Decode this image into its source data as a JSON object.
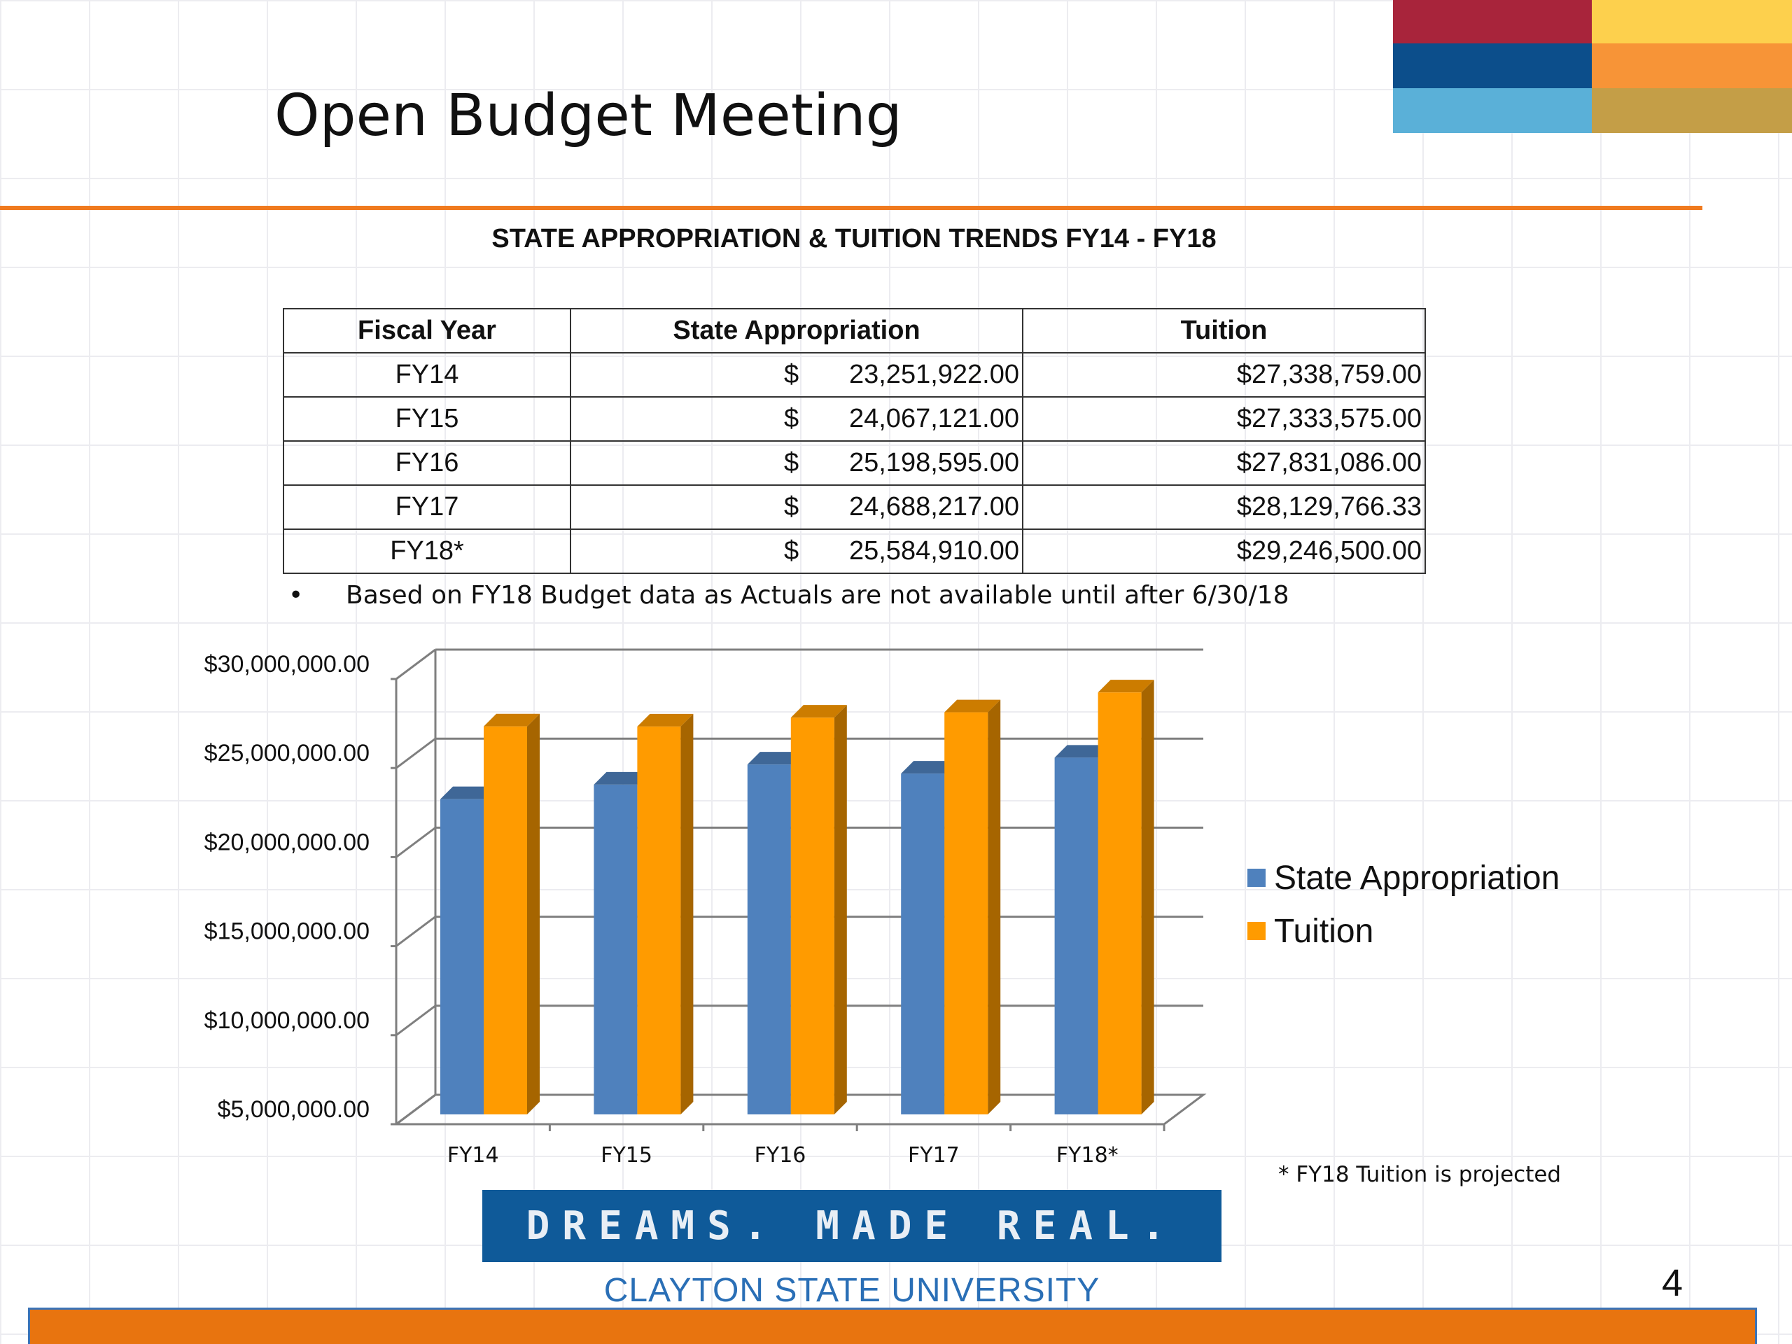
{
  "header": {
    "title": "Open Budget Meeting",
    "brand_colors": [
      "#a8243b",
      "#fdd04d",
      "#0c4e8b",
      "#f79437",
      "#5ab0d8",
      "#c49e47"
    ],
    "accent_rule_color": "#f07a1e"
  },
  "table": {
    "title": "STATE APPROPRIATION & TUITION TRENDS FY14 - FY18",
    "headers": [
      "Fiscal Year",
      "State Appropriation",
      "Tuition"
    ],
    "currency_symbol": "$",
    "rows": [
      {
        "year": "FY14",
        "state": "23,251,922.00",
        "tuition": "$27,338,759.00"
      },
      {
        "year": "FY15",
        "state": "24,067,121.00",
        "tuition": "$27,333,575.00"
      },
      {
        "year": "FY16",
        "state": "25,198,595.00",
        "tuition": "$27,831,086.00"
      },
      {
        "year": "FY17",
        "state": "24,688,217.00",
        "tuition": "$28,129,766.33"
      },
      {
        "year": "FY18*",
        "state": "25,584,910.00",
        "tuition": "$29,246,500.00"
      }
    ],
    "footnote_bullet": "•",
    "footnote": "Based on FY18 Budget data as Actuals are not available until after 6/30/18"
  },
  "chart_data": {
    "type": "bar",
    "categories": [
      "FY14",
      "FY15",
      "FY16",
      "FY17",
      "FY18*"
    ],
    "series": [
      {
        "name": "State Appropriation",
        "color": "#4f81bd",
        "values": [
          23251922.0,
          24067121.0,
          25198595.0,
          24688217.0,
          25584910.0
        ]
      },
      {
        "name": "Tuition",
        "color": "#ff9b00",
        "values": [
          27338759.0,
          27333575.0,
          27831086.0,
          28129766.33,
          29246500.0
        ]
      }
    ],
    "ylim": [
      5000000,
      30000000
    ],
    "y_ticks": [
      {
        "value": 30000000,
        "label": "$30,000,000.00"
      },
      {
        "value": 25000000,
        "label": "$25,000,000.00"
      },
      {
        "value": 20000000,
        "label": "$20,000,000.00"
      },
      {
        "value": 15000000,
        "label": "$15,000,000.00"
      },
      {
        "value": 10000000,
        "label": "$10,000,000.00"
      },
      {
        "value": 5000000,
        "label": "$5,000,000.00"
      }
    ],
    "grid": true,
    "style": "3d",
    "legend_position": "right"
  },
  "chart_note": "* FY18 Tuition is projected",
  "footer": {
    "tagline": "DREAMS. MADE REAL.",
    "university": "CLAYTON STATE UNIVERSITY",
    "page_number": "4"
  }
}
